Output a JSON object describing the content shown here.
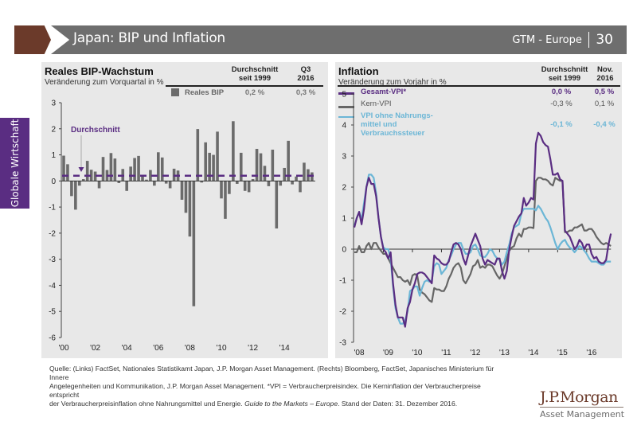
{
  "header": {
    "title": "Japan: BIP und Inflation",
    "series_label": "GTM - Europe",
    "page_number": "30",
    "colors": {
      "brown": "#6b3a2a",
      "bar": "#6e6e6e"
    }
  },
  "sidebar": {
    "label": "Globale Wirtschaft",
    "color": "#5a2d82"
  },
  "left_panel": {
    "title": "Reales BIP-Wachstum",
    "subtitle": "Veränderung zum Vorquartal in %",
    "col_headers": [
      "Durchschnitt\nseit 1999",
      "Q3\n2016"
    ],
    "col_header_avg": "Durchschnitt",
    "col_header_avg2": "seit 1999",
    "col_header_cur": "Q3",
    "col_header_cur2": "2016",
    "legend": {
      "label": "Reales BIP",
      "avg": "0,2 %",
      "current": "0,3 %",
      "color": "#6b6b6b"
    },
    "annotation": "Durchschnitt"
  },
  "right_panel": {
    "title": "Inflation",
    "subtitle": "Veränderung zum Vorjahr in %",
    "col_header_avg": "Durchschnitt",
    "col_header_avg2": "seit 1999",
    "col_header_cur": "Nov.",
    "col_header_cur2": "2016",
    "legend": [
      {
        "label": "Gesamt-VPI*",
        "avg": "0,0 %",
        "current": "0,5 %",
        "color": "#5a2d82"
      },
      {
        "label": "Kern-VPI",
        "avg": "-0,3 %",
        "current": "0,1 %",
        "color": "#666666"
      },
      {
        "label": "VPI ohne Nahrungs-",
        "label2": "mittel und",
        "label3": "Verbrauchssteuer",
        "avg": "-0,1 %",
        "current": "-0,4 %",
        "color": "#6bb6d6"
      }
    ]
  },
  "chart_data": [
    {
      "type": "bar",
      "title": "Reales BIP-Wachstum",
      "ylabel": "Veränderung zum Vorquartal in %",
      "ylim": [
        -6,
        3
      ],
      "yticks": [
        3,
        2,
        1,
        0,
        -1,
        -2,
        -3,
        -4,
        -5,
        -6
      ],
      "xtick_labels": [
        "'00",
        "'02",
        "'04",
        "'06",
        "'08",
        "'10",
        "'12",
        "'14"
      ],
      "xtick_every_n_quarters": 8,
      "first_quarter": "2000Q4",
      "last_quarter": "2016Q3",
      "average_line": {
        "value": 0.2,
        "label": "Durchschnitt",
        "style": "dashed",
        "color": "#5a2d82"
      },
      "series": [
        {
          "name": "Reales BIP",
          "color": "#6b6b6b",
          "values": [
            0.97,
            0.64,
            -0.58,
            -1.1,
            -0.18,
            0.07,
            0.77,
            0.43,
            0.36,
            -0.28,
            0.92,
            0.42,
            1.07,
            0.86,
            -0.08,
            0.46,
            -0.38,
            0.55,
            0.88,
            0.96,
            0.2,
            0.05,
            0.42,
            -0.18,
            1.1,
            0.9,
            -0.1,
            -0.28,
            0.47,
            0.4,
            -0.72,
            -1.22,
            -2.13,
            -4.8,
            1.99,
            -0.06,
            1.48,
            1.08,
            1.0,
            1.89,
            -0.67,
            -1.45,
            -0.5,
            2.29,
            -0.11,
            1.08,
            -0.38,
            -0.43,
            0.07,
            1.23,
            1.06,
            0.58,
            -0.2,
            1.2,
            -1.82,
            -0.18,
            0.5,
            1.54,
            -0.13,
            0.17,
            -0.43,
            0.7,
            0.45,
            0.33
          ]
        }
      ],
      "legend": "top-right"
    },
    {
      "type": "line",
      "title": "Inflation",
      "ylabel": "Veränderung zum Vorjahr in %",
      "ylim": [
        -3,
        5
      ],
      "yticks": [
        5,
        4,
        3,
        2,
        1,
        0,
        -1,
        -2,
        -3
      ],
      "xtick_labels": [
        "'08",
        "'09",
        "'10",
        "'11",
        "'12",
        "'13",
        "'14",
        "'15",
        "'16"
      ],
      "x_start": "2008-01",
      "x_end": "2016-11",
      "frequency": "monthly",
      "series": [
        {
          "name": "Gesamt-VPI*",
          "color": "#5a2d82",
          "values": [
            0.7,
            1.0,
            1.2,
            0.8,
            1.3,
            2.0,
            2.3,
            2.1,
            2.1,
            1.7,
            1.0,
            0.4,
            0.0,
            -0.1,
            -0.3,
            -0.1,
            -1.1,
            -1.8,
            -2.2,
            -2.2,
            -2.2,
            -2.5,
            -1.9,
            -1.7,
            -1.3,
            -1.1,
            -0.8,
            -0.75,
            -0.75,
            -0.8,
            -0.9,
            -1.0,
            -1.1,
            -0.2,
            -0.3,
            -0.35,
            -0.45,
            -0.5,
            -0.5,
            -0.4,
            -0.1,
            0.15,
            0.2,
            0.15,
            0.0,
            -0.3,
            -0.5,
            -0.2,
            0.1,
            0.3,
            0.5,
            0.3,
            0.1,
            -0.3,
            -0.5,
            -0.35,
            -0.4,
            -0.45,
            -0.5,
            -0.3,
            -0.3,
            -0.7,
            -0.95,
            -0.7,
            0.0,
            0.4,
            0.75,
            0.9,
            1.05,
            1.15,
            1.65,
            1.4,
            1.5,
            1.65,
            1.6,
            3.4,
            3.75,
            3.65,
            3.45,
            3.35,
            3.3,
            2.9,
            2.4,
            2.4,
            2.45,
            2.25,
            2.2,
            0.6,
            0.5,
            0.4,
            0.2,
            0.0,
            0.1,
            0.3,
            0.2,
            0.0,
            0.15,
            0.15,
            -0.15,
            -0.3,
            -0.25,
            -0.4,
            -0.45,
            -0.45,
            -0.35,
            0.15,
            0.5
          ]
        },
        {
          "name": "Kern-VPI",
          "color": "#666666",
          "values": [
            -0.1,
            -0.1,
            0.1,
            -0.1,
            -0.1,
            0.1,
            0.2,
            0.0,
            0.2,
            0.2,
            0.05,
            -0.05,
            -0.15,
            -0.15,
            -0.3,
            -0.45,
            -0.6,
            -0.75,
            -0.9,
            -0.9,
            -1.0,
            -1.05,
            -1.0,
            -1.15,
            -0.85,
            -0.8,
            -0.85,
            -1.3,
            -1.4,
            -1.45,
            -1.55,
            -1.65,
            -1.7,
            -1.25,
            -1.3,
            -1.3,
            -1.35,
            -1.35,
            -1.2,
            -0.95,
            -0.8,
            -0.6,
            -0.5,
            -0.45,
            -0.6,
            -1.0,
            -1.1,
            -0.95,
            -0.8,
            -0.55,
            -0.5,
            -0.35,
            -0.6,
            -0.55,
            -0.6,
            -0.5,
            -0.5,
            -0.55,
            -0.7,
            -0.85,
            -0.95,
            -0.8,
            -0.55,
            -0.3,
            -0.05,
            0.05,
            0.1,
            0.35,
            0.5,
            0.4,
            0.65,
            0.65,
            0.7,
            0.7,
            0.68,
            2.2,
            2.3,
            2.3,
            2.25,
            2.25,
            2.2,
            2.1,
            2.05,
            2.3,
            2.25,
            2.2,
            2.2,
            0.55,
            0.55,
            0.6,
            0.6,
            0.7,
            0.7,
            0.75,
            0.8,
            0.6,
            0.6,
            0.65,
            0.65,
            0.55,
            0.4,
            0.3,
            0.2,
            0.15,
            0.2,
            0.15,
            0.1
          ]
        },
        {
          "name": "VPI ohne Nahrungsmittel und Verbrauchssteuer",
          "color": "#6bb6d6",
          "values": [
            0.75,
            1.0,
            1.2,
            0.95,
            1.5,
            2.0,
            2.4,
            2.4,
            2.3,
            1.8,
            1.0,
            0.4,
            0.05,
            0.0,
            0.0,
            -0.3,
            -1.2,
            -1.9,
            -2.2,
            -2.4,
            -2.4,
            -2.3,
            -2.0,
            -1.35,
            -1.3,
            -1.2,
            -1.2,
            -1.5,
            -1.25,
            -1.05,
            -1.0,
            -1.05,
            -1.0,
            -0.55,
            -0.45,
            -0.5,
            -0.8,
            -0.7,
            -0.6,
            -0.35,
            -0.2,
            0.0,
            0.15,
            0.2,
            0.2,
            0.0,
            -0.15,
            -0.15,
            -0.1,
            0.1,
            0.15,
            0.0,
            -0.2,
            -0.25,
            -0.25,
            -0.15,
            0.0,
            -0.05,
            -0.2,
            -0.3,
            -0.35,
            -0.5,
            -0.4,
            -0.1,
            0.15,
            0.5,
            0.7,
            0.75,
            0.8,
            1.15,
            1.3,
            1.3,
            1.3,
            1.3,
            1.3,
            1.25,
            1.4,
            1.3,
            1.15,
            1.0,
            0.9,
            0.7,
            0.45,
            0.2,
            0.0,
            0.15,
            0.25,
            0.3,
            0.15,
            0.05,
            0.0,
            -0.1,
            0.0,
            0.1,
            0.05,
            -0.05,
            -0.15,
            -0.3,
            -0.4,
            -0.4,
            -0.4,
            -0.45,
            -0.5,
            -0.5,
            -0.4,
            -0.4,
            -0.4
          ]
        }
      ],
      "legend": "top-right"
    }
  ],
  "footer": {
    "source_1": "Quelle: (Links) FactSet, Nationales Statistikamt Japan, J.P. Morgan Asset Management. (Rechts) Bloomberg, FactSet, Japanisches Ministerium für Innere",
    "source_2": "Angelegenheiten und Kommunikation, J.P. Morgan Asset Management. *VPI = Verbraucherpreisindex. Die Kerninflation der Verbraucherpreise entspricht",
    "source_3a": "der Verbraucherpreisinflation ohne Nahrungsmittel und Energie. ",
    "source_3b": "Guide to the Markets – Europe",
    "source_3c": ". Stand der Daten: 31. Dezember 2016."
  },
  "logo": {
    "brand": "J.P.Morgan",
    "division": "Asset Management"
  }
}
